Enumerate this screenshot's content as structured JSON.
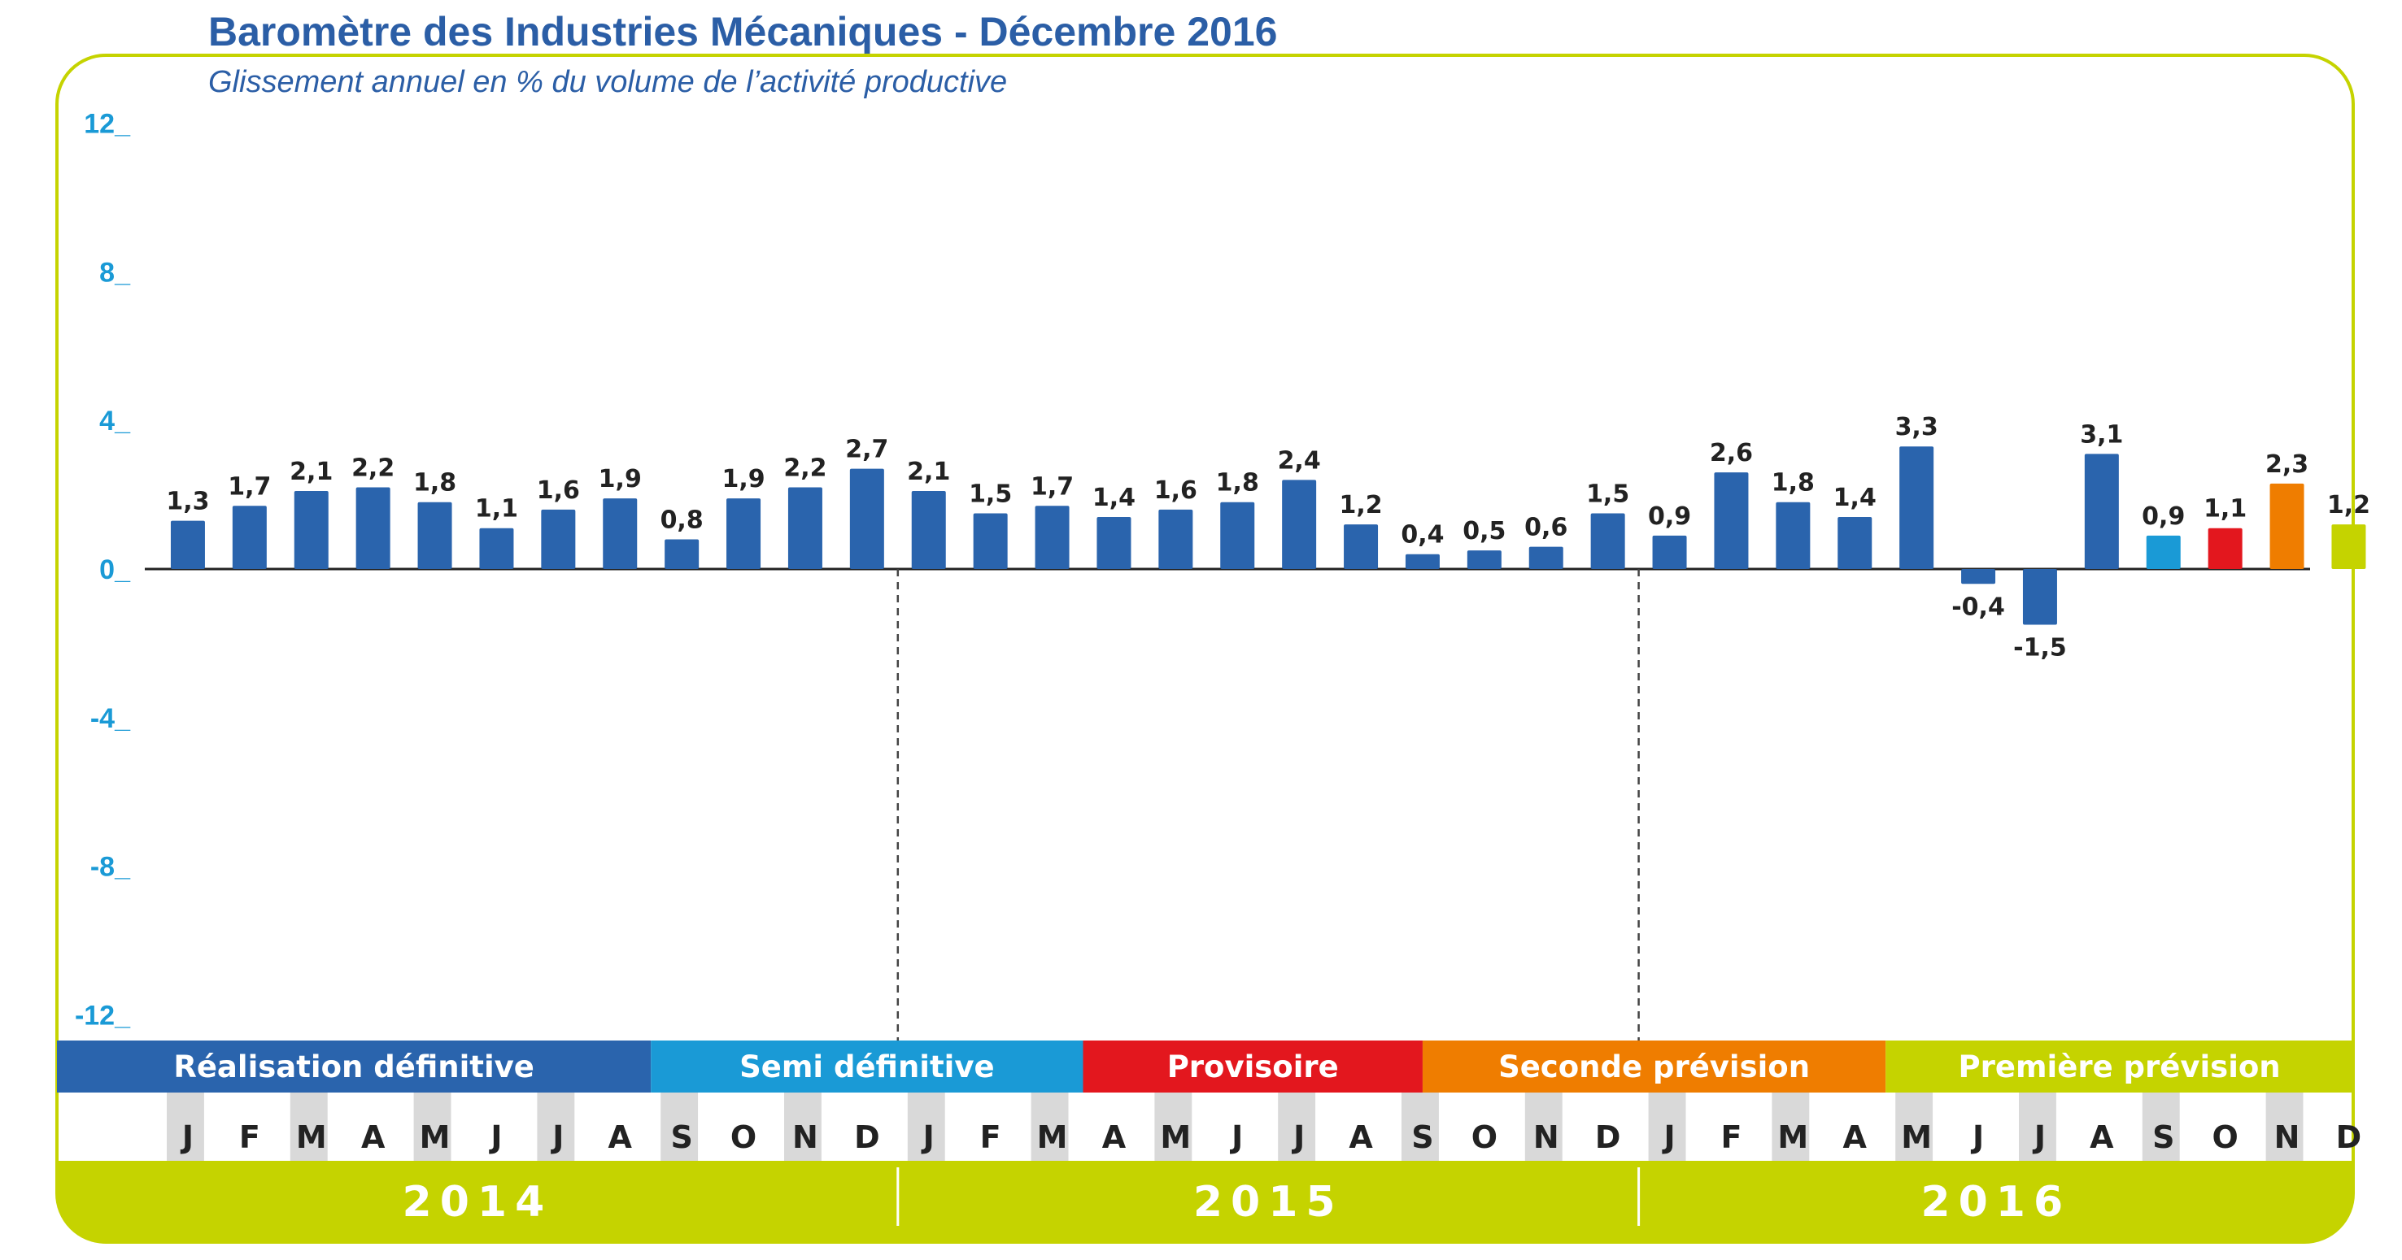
{
  "title": "Baromètre des Industries Mécaniques - Décembre 2016",
  "subtitle": "Glissement annuel en % du volume de l’activité productive",
  "colors": {
    "frame": "#c5d300",
    "bar_default": "#2a64ad",
    "semi": "#1a9ad6",
    "provisoire": "#e3171e",
    "seconde": "#ef7d00",
    "premiere": "#c5d300",
    "axis_text": "#1a9ad6",
    "month_band": "#d9d9d9"
  },
  "chart_data": {
    "type": "bar",
    "title": "Baromètre des Industries Mécaniques - Décembre 2016",
    "subtitle": "Glissement annuel en % du volume de l’activité productive",
    "ylim": [
      -12,
      12
    ],
    "yticks": [
      "12_",
      "8_",
      "4_",
      "0_",
      "-4_",
      "-8_",
      "-12_"
    ],
    "ytick_values": [
      12,
      8,
      4,
      0,
      -4,
      -8,
      -12
    ],
    "categories": [
      "J",
      "F",
      "M",
      "A",
      "M",
      "J",
      "J",
      "A",
      "S",
      "O",
      "N",
      "D",
      "J",
      "F",
      "M",
      "A",
      "M",
      "J",
      "J",
      "A",
      "S",
      "O",
      "N",
      "D",
      "J",
      "F",
      "M",
      "A",
      "M",
      "J",
      "J",
      "A",
      "S",
      "O",
      "N",
      "D"
    ],
    "values": [
      1.3,
      1.7,
      2.1,
      2.2,
      1.8,
      1.1,
      1.6,
      1.9,
      0.8,
      1.9,
      2.2,
      2.7,
      2.1,
      1.5,
      1.7,
      1.4,
      1.6,
      1.8,
      2.4,
      1.2,
      0.4,
      0.5,
      0.6,
      1.5,
      0.9,
      2.6,
      1.8,
      1.4,
      3.3,
      -0.4,
      -1.5,
      3.1,
      0.9,
      1.1,
      2.3,
      1.2
    ],
    "value_labels": [
      "1,3",
      "1,7",
      "2,1",
      "2,2",
      "1,8",
      "1,1",
      "1,6",
      "1,9",
      "0,8",
      "1,9",
      "2,2",
      "2,7",
      "2,1",
      "1,5",
      "1,7",
      "1,4",
      "1,6",
      "1,8",
      "2,4",
      "1,2",
      "0,4",
      "0,5",
      "0,6",
      "1,5",
      "0,9",
      "2,6",
      "1,8",
      "1,4",
      "3,3",
      "-0,4",
      "-1,5",
      "3,1",
      "0,9",
      "1,1",
      "2,3",
      "1,2"
    ],
    "bar_colors": [
      "#2a64ad",
      "#2a64ad",
      "#2a64ad",
      "#2a64ad",
      "#2a64ad",
      "#2a64ad",
      "#2a64ad",
      "#2a64ad",
      "#2a64ad",
      "#2a64ad",
      "#2a64ad",
      "#2a64ad",
      "#2a64ad",
      "#2a64ad",
      "#2a64ad",
      "#2a64ad",
      "#2a64ad",
      "#2a64ad",
      "#2a64ad",
      "#2a64ad",
      "#2a64ad",
      "#2a64ad",
      "#2a64ad",
      "#2a64ad",
      "#2a64ad",
      "#2a64ad",
      "#2a64ad",
      "#2a64ad",
      "#2a64ad",
      "#2a64ad",
      "#2a64ad",
      "#2a64ad",
      "#1a9ad6",
      "#e3171e",
      "#ef7d00",
      "#c5d300"
    ],
    "years": [
      {
        "label": "2014",
        "start": 0,
        "end": 12
      },
      {
        "label": "2015",
        "start": 12,
        "end": 24
      },
      {
        "label": "2016",
        "start": 24,
        "end": 36
      }
    ],
    "phases": [
      {
        "label": "Réalisation définitive",
        "start": 0,
        "end": 8,
        "color": "#2a64ad"
      },
      {
        "label": "Semi définitive",
        "start": 8,
        "end": 15,
        "color": "#1a9ad6"
      },
      {
        "label": "Provisoire",
        "start": 15,
        "end": 20.5,
        "color": "#e3171e"
      },
      {
        "label": "Seconde prévision",
        "start": 20.5,
        "end": 28,
        "color": "#ef7d00"
      },
      {
        "label": "Première prévision",
        "start": 28,
        "end": 36,
        "color": "#c5d300"
      }
    ]
  }
}
